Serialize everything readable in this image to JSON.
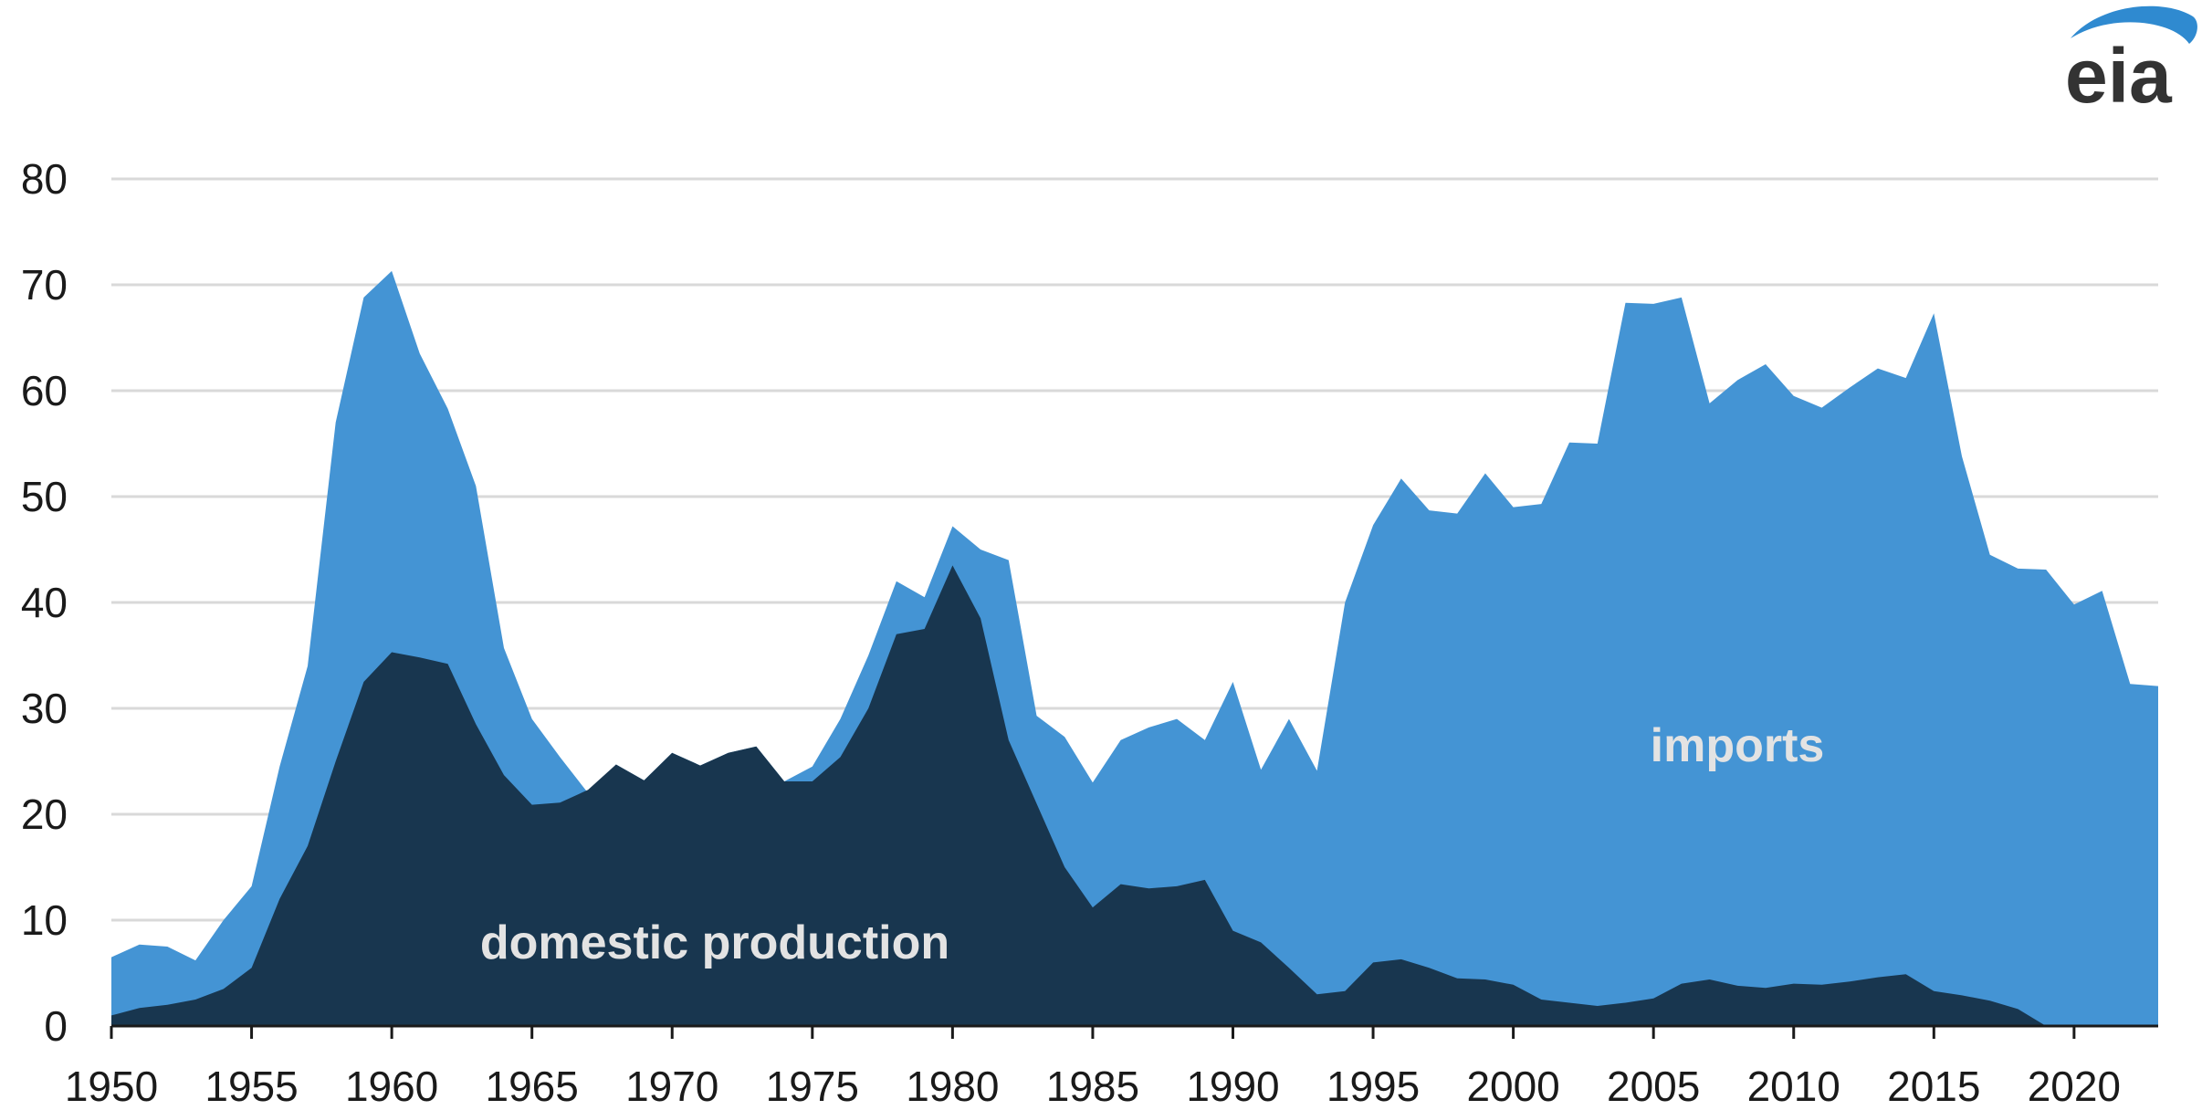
{
  "logo": {
    "text": "eia",
    "swoosh_color": "#2f8ad0"
  },
  "colors": {
    "imports": "#4494d4",
    "domestic": "#18364f",
    "gridline": "#d9d9d9",
    "axis": "#1a1a1a",
    "label": "#e3e3e3"
  },
  "chart_data": {
    "type": "area",
    "stacked": true,
    "title": "",
    "xlabel": "",
    "ylabel": "",
    "xlim": [
      1950,
      2023
    ],
    "ylim": [
      0,
      80
    ],
    "y_ticks": [
      0,
      10,
      20,
      30,
      40,
      50,
      60,
      70,
      80
    ],
    "x_ticks": [
      1950,
      1955,
      1960,
      1965,
      1970,
      1975,
      1980,
      1985,
      1990,
      1995,
      2000,
      2005,
      2010,
      2015,
      2020
    ],
    "grid": true,
    "x": [
      1950,
      1951,
      1952,
      1953,
      1954,
      1955,
      1956,
      1957,
      1958,
      1959,
      1960,
      1961,
      1962,
      1963,
      1964,
      1965,
      1966,
      1967,
      1968,
      1969,
      1970,
      1971,
      1972,
      1973,
      1974,
      1975,
      1976,
      1977,
      1978,
      1979,
      1980,
      1981,
      1982,
      1983,
      1984,
      1985,
      1986,
      1987,
      1988,
      1989,
      1990,
      1991,
      1992,
      1993,
      1994,
      1995,
      1996,
      1997,
      1998,
      1999,
      2000,
      2001,
      2002,
      2003,
      2004,
      2005,
      2006,
      2007,
      2008,
      2009,
      2010,
      2011,
      2012,
      2013,
      2014,
      2015,
      2016,
      2017,
      2018,
      2019,
      2020,
      2021,
      2022,
      2023
    ],
    "series": [
      {
        "name": "domestic production",
        "values": [
          1.0,
          1.7,
          2.0,
          2.5,
          3.5,
          5.5,
          12.0,
          17.0,
          25.0,
          32.5,
          35.3,
          34.8,
          34.2,
          28.5,
          23.7,
          20.9,
          21.1,
          22.3,
          24.7,
          23.2,
          25.8,
          24.6,
          25.8,
          26.4,
          23.1,
          23.1,
          25.4,
          30.0,
          37.0,
          37.5,
          43.5,
          38.5,
          27.0,
          21.0,
          15.0,
          11.2,
          13.4,
          13.0,
          13.2,
          13.8,
          9.0,
          7.9,
          5.5,
          3.0,
          3.3,
          6.0,
          6.3,
          5.5,
          4.5,
          4.4,
          3.9,
          2.5,
          2.2,
          1.9,
          2.2,
          2.6,
          4.0,
          4.4,
          3.8,
          3.6,
          4.0,
          3.9,
          4.2,
          4.6,
          4.9,
          3.3,
          2.9,
          2.4,
          1.6,
          0.0,
          0.0,
          0.0,
          0.0,
          0.0
        ]
      },
      {
        "name": "imports",
        "total_values": [
          6.5,
          7.7,
          7.5,
          6.2,
          10.0,
          13.2,
          24.5,
          34.0,
          57.0,
          68.8,
          71.3,
          63.5,
          58.3,
          51.0,
          35.7,
          29.0,
          25.4,
          22.0,
          24.7,
          23.2,
          25.8,
          24.6,
          25.8,
          26.4,
          23.1,
          24.5,
          29.0,
          35.0,
          42.0,
          40.5,
          47.2,
          45.0,
          44.0,
          29.3,
          27.3,
          23.0,
          27.0,
          28.2,
          29.0,
          27.0,
          32.5,
          24.2,
          29.0,
          24.1,
          40.0,
          47.3,
          51.7,
          48.7,
          48.4,
          52.2,
          49.0,
          49.3,
          55.1,
          55.0,
          68.3,
          68.2,
          68.8,
          58.8,
          61.0,
          62.5,
          59.5,
          58.4,
          60.3,
          62.1,
          61.2,
          67.3,
          53.8,
          44.5,
          43.2,
          43.1,
          39.8,
          41.1,
          32.3,
          32.1
        ]
      }
    ],
    "annotations": [
      "domestic production",
      "imports"
    ]
  }
}
